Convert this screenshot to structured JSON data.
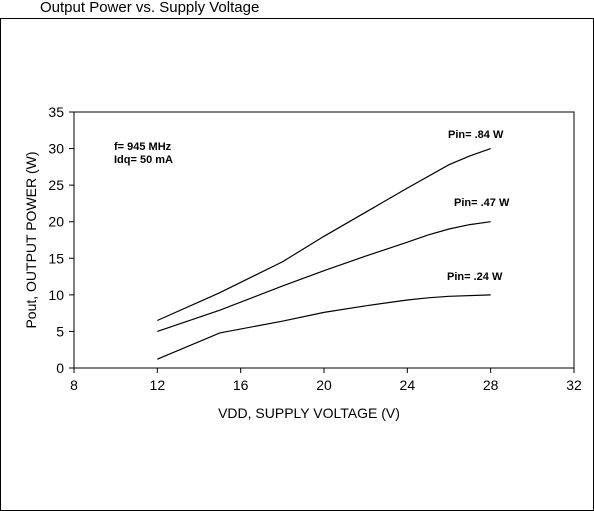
{
  "page": {
    "caption": "Output Power vs. Supply Voltage"
  },
  "chart_data": {
    "type": "line",
    "title": "",
    "xlabel": "VDD, SUPPLY VOLTAGE (V)",
    "ylabel": "Pout, OUTPUT POWER (W)",
    "xlim": [
      8,
      32
    ],
    "ylim": [
      0,
      35
    ],
    "xticks": [
      8,
      12,
      16,
      20,
      24,
      28,
      32
    ],
    "yticks": [
      0,
      5,
      10,
      15,
      20,
      25,
      30,
      35
    ],
    "grid": false,
    "annotations": [
      "f= 945 MHz",
      "Idq= 50 mA"
    ],
    "series": [
      {
        "name": "Pin= .84 W",
        "x": [
          12,
          15,
          18,
          20,
          22,
          24,
          26,
          27,
          28
        ],
        "y": [
          6.5,
          10.3,
          14.5,
          18.0,
          21.3,
          24.6,
          27.8,
          29.0,
          30.0
        ]
      },
      {
        "name": "Pin= .47 W",
        "x": [
          12,
          15,
          18,
          20,
          22,
          24,
          25,
          26,
          27,
          28
        ],
        "y": [
          5.0,
          7.9,
          11.2,
          13.3,
          15.3,
          17.2,
          18.2,
          19.0,
          19.6,
          20.0
        ]
      },
      {
        "name": "Pin= .24 W",
        "x": [
          12,
          15,
          18,
          20,
          22,
          24,
          25,
          26,
          28
        ],
        "y": [
          1.2,
          4.8,
          6.4,
          7.6,
          8.5,
          9.3,
          9.6,
          9.8,
          10.0
        ]
      }
    ]
  }
}
